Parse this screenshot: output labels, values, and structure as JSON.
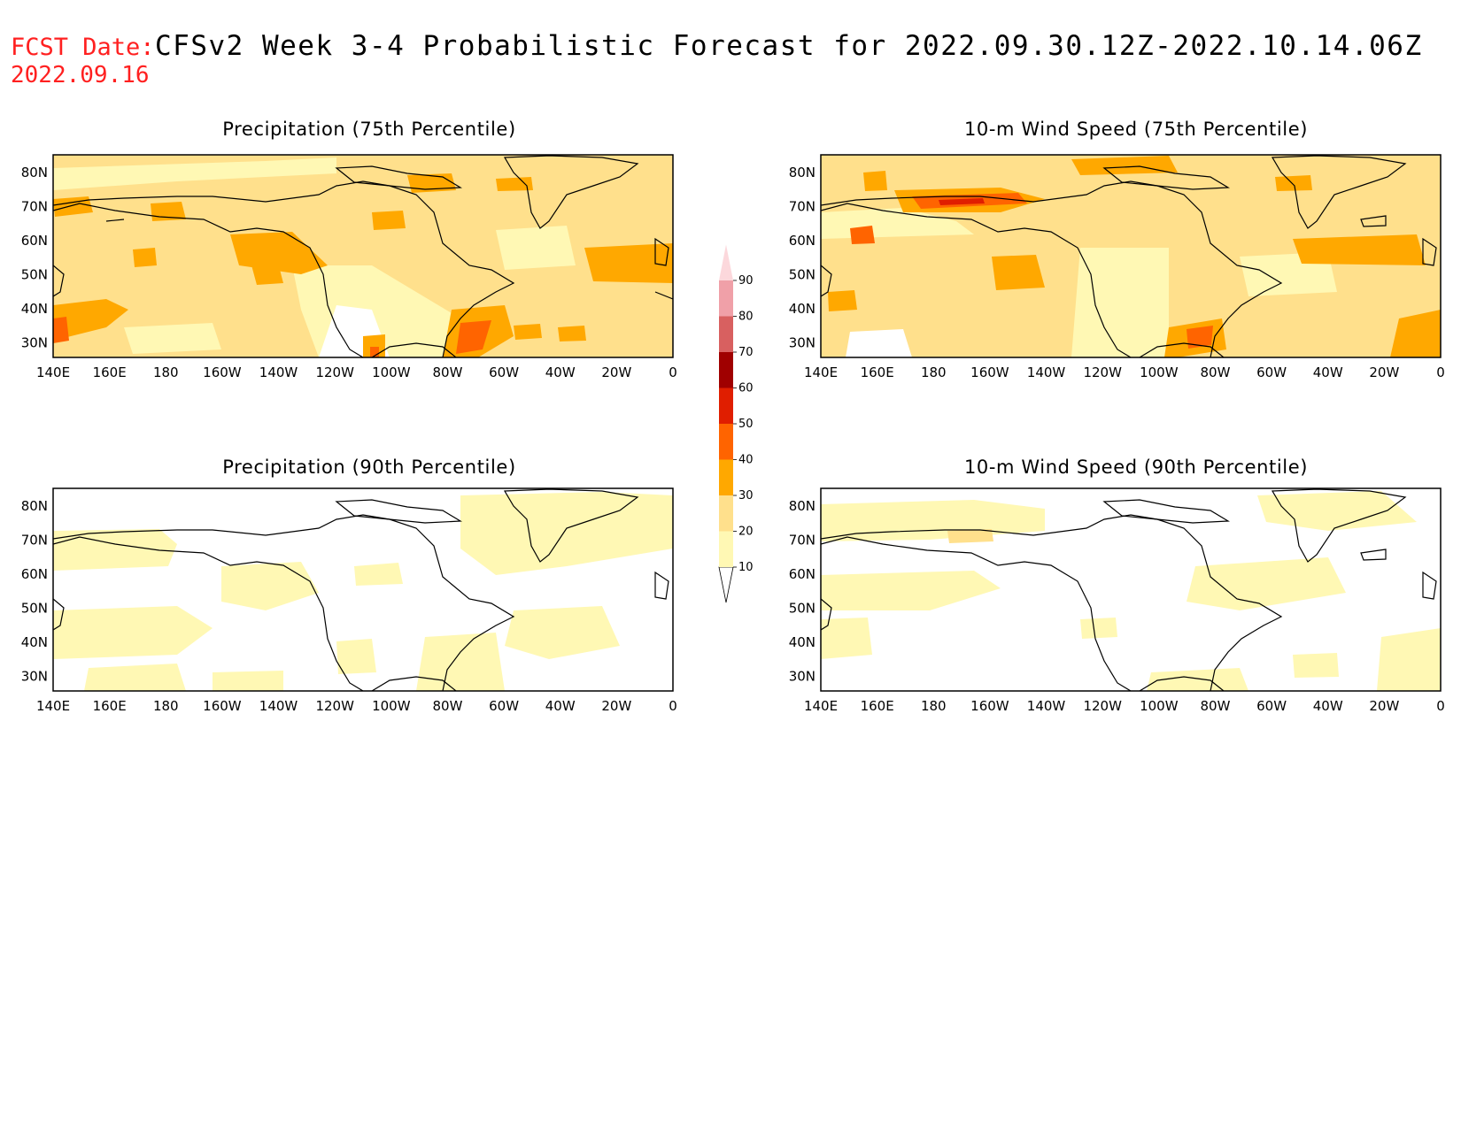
{
  "header": {
    "fcst_label": "FCST Date:",
    "fcst_date": "2022.09.16",
    "title": "CFSv2 Week 3-4 Probabilistic Forecast for 2022.09.30.12Z-2022.10.14.06Z"
  },
  "axes": {
    "x_labels": [
      "140E",
      "160E",
      "180",
      "160W",
      "140W",
      "120W",
      "100W",
      "80W",
      "60W",
      "40W",
      "20W",
      "0"
    ],
    "y_labels": [
      "80N",
      "70N",
      "60N",
      "50N",
      "40N",
      "30N"
    ]
  },
  "panels": [
    {
      "id": "precip75",
      "title": "Precipitation (75th Percentile)",
      "field": "strong-precip"
    },
    {
      "id": "wind75",
      "title": "10-m Wind Speed (75th Percentile)",
      "field": "strong-wind"
    },
    {
      "id": "precip90",
      "title": "Precipitation (90th Percentile)",
      "field": "weak-precip"
    },
    {
      "id": "wind90",
      "title": "10-m Wind Speed (90th Percentile)",
      "field": "weak-wind"
    }
  ],
  "colorbar": {
    "levels": [
      "10",
      "20",
      "30",
      "40",
      "50",
      "60",
      "70",
      "80",
      "90"
    ],
    "colors": [
      "#fff8b4",
      "#ffe08c",
      "#ffa800",
      "#ff6400",
      "#e01e00",
      "#a00000",
      "#d86060",
      "#f0a0a8",
      "#fcd8dc"
    ]
  }
}
